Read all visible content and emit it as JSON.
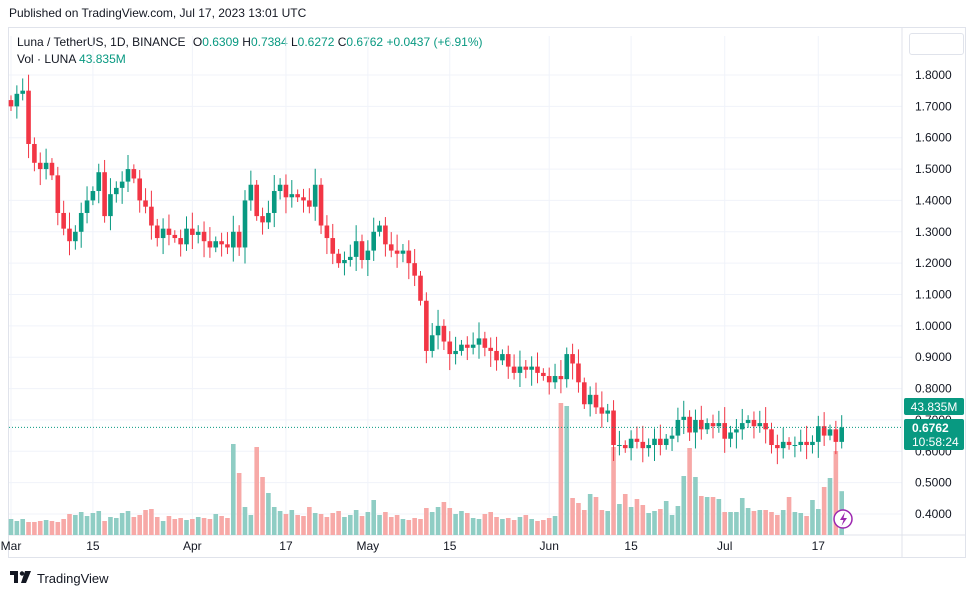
{
  "header": {
    "published": "Published on TradingView.com, Jul 17, 2023 13:01 UTC"
  },
  "legend": {
    "symbol": "Luna / TetherUS, 1D, BINANCE",
    "open_label": "O",
    "open": "0.6309",
    "high_label": "H",
    "high": "0.7384",
    "low_label": "L",
    "low": "0.6272",
    "close_label": "C",
    "close": "0.6762",
    "change": "+0.0437 (+6.91%)",
    "vol_label": "Vol · LUNA",
    "vol_value": "43.835M"
  },
  "price_tags": {
    "volume_tag": "43.835M",
    "last_price": "0.6762",
    "countdown": "10:58:24"
  },
  "footer": {
    "brand": "TradingView"
  },
  "colors": {
    "up": "#089981",
    "down": "#f23645",
    "vol_up": "#8fcdc4",
    "vol_down": "#f7a9a7",
    "grid": "#f0f3fa",
    "accent_purple": "#9c27b0"
  },
  "chart_data": {
    "type": "candlestick",
    "title": "Luna / TetherUS, 1D, BINANCE",
    "ylim": [
      0.36,
      1.83
    ],
    "y_ticks": [
      "1.8000",
      "1.7000",
      "1.6000",
      "1.5000",
      "1.4000",
      "1.3000",
      "1.2000",
      "1.1000",
      "1.0000",
      "0.9000",
      "0.8000",
      "0.7000",
      "0.6000",
      "0.5000",
      "0.4000"
    ],
    "x_ticks": [
      {
        "label": "Mar",
        "day": 0
      },
      {
        "label": "15",
        "day": 14
      },
      {
        "label": "Apr",
        "day": 31
      },
      {
        "label": "17",
        "day": 47
      },
      {
        "label": "May",
        "day": 61
      },
      {
        "label": "15",
        "day": 75
      },
      {
        "label": "Jun",
        "day": 92
      },
      {
        "label": "15",
        "day": 106
      },
      {
        "label": "Jul",
        "day": 122
      },
      {
        "label": "17",
        "day": 138
      }
    ],
    "first_day_label": "Mar 1",
    "closes": [
      1.7,
      1.74,
      1.75,
      1.58,
      1.52,
      1.5,
      1.52,
      1.48,
      1.36,
      1.31,
      1.27,
      1.3,
      1.36,
      1.4,
      1.43,
      1.49,
      1.35,
      1.42,
      1.44,
      1.46,
      1.5,
      1.47,
      1.4,
      1.38,
      1.32,
      1.28,
      1.31,
      1.29,
      1.28,
      1.26,
      1.31,
      1.29,
      1.3,
      1.27,
      1.25,
      1.27,
      1.26,
      1.25,
      1.3,
      1.25,
      1.4,
      1.45,
      1.35,
      1.33,
      1.36,
      1.43,
      1.45,
      1.41,
      1.42,
      1.41,
      1.4,
      1.38,
      1.45,
      1.32,
      1.28,
      1.23,
      1.2,
      1.21,
      1.22,
      1.27,
      1.21,
      1.24,
      1.3,
      1.32,
      1.26,
      1.24,
      1.23,
      1.24,
      1.2,
      1.16,
      1.08,
      0.92,
      0.97,
      1.0,
      0.95,
      0.91,
      0.92,
      0.94,
      0.93,
      0.94,
      0.96,
      0.93,
      0.92,
      0.89,
      0.91,
      0.87,
      0.85,
      0.87,
      0.86,
      0.87,
      0.85,
      0.84,
      0.82,
      0.84,
      0.83,
      0.91,
      0.88,
      0.82,
      0.75,
      0.78,
      0.74,
      0.72,
      0.73,
      0.62,
      0.62,
      0.61,
      0.64,
      0.63,
      0.61,
      0.62,
      0.64,
      0.62,
      0.64,
      0.65,
      0.7,
      0.71,
      0.66,
      0.7,
      0.67,
      0.69,
      0.68,
      0.69,
      0.64,
      0.66,
      0.67,
      0.69,
      0.7,
      0.68,
      0.69,
      0.67,
      0.62,
      0.61,
      0.63,
      0.62,
      0.62,
      0.63,
      0.62,
      0.63,
      0.68,
      0.65,
      0.67,
      0.63,
      0.6762
    ],
    "volumes": [
      0.16,
      0.14,
      0.16,
      0.13,
      0.13,
      0.14,
      0.15,
      0.14,
      0.13,
      0.16,
      0.21,
      0.2,
      0.23,
      0.19,
      0.22,
      0.24,
      0.14,
      0.18,
      0.17,
      0.22,
      0.24,
      0.18,
      0.2,
      0.25,
      0.26,
      0.18,
      0.14,
      0.19,
      0.16,
      0.17,
      0.15,
      0.16,
      0.18,
      0.17,
      0.16,
      0.21,
      0.19,
      0.17,
      0.91,
      0.62,
      0.28,
      0.2,
      0.88,
      0.58,
      0.42,
      0.28,
      0.24,
      0.21,
      0.25,
      0.2,
      0.19,
      0.28,
      0.22,
      0.21,
      0.18,
      0.22,
      0.24,
      0.18,
      0.2,
      0.25,
      0.19,
      0.23,
      0.35,
      0.2,
      0.23,
      0.18,
      0.2,
      0.16,
      0.15,
      0.17,
      0.16,
      0.27,
      0.23,
      0.28,
      0.33,
      0.27,
      0.21,
      0.24,
      0.22,
      0.17,
      0.16,
      0.21,
      0.23,
      0.18,
      0.16,
      0.17,
      0.15,
      0.18,
      0.2,
      0.16,
      0.14,
      0.15,
      0.17,
      0.19,
      1.32,
      1.29,
      0.37,
      0.32,
      0.25,
      0.41,
      0.38,
      0.25,
      0.24,
      0.88,
      0.31,
      0.41,
      0.28,
      0.36,
      0.3,
      0.22,
      0.24,
      0.26,
      0.34,
      0.2,
      0.29,
      0.59,
      0.87,
      0.58,
      0.39,
      0.38,
      0.38,
      0.36,
      0.23,
      0.23,
      0.23,
      0.37,
      0.27,
      0.24,
      0.25,
      0.25,
      0.23,
      0.2,
      0.25,
      0.38,
      0.23,
      0.22,
      0.19,
      0.35,
      0.26,
      0.48,
      0.57,
      0.84,
      0.4383
    ]
  }
}
